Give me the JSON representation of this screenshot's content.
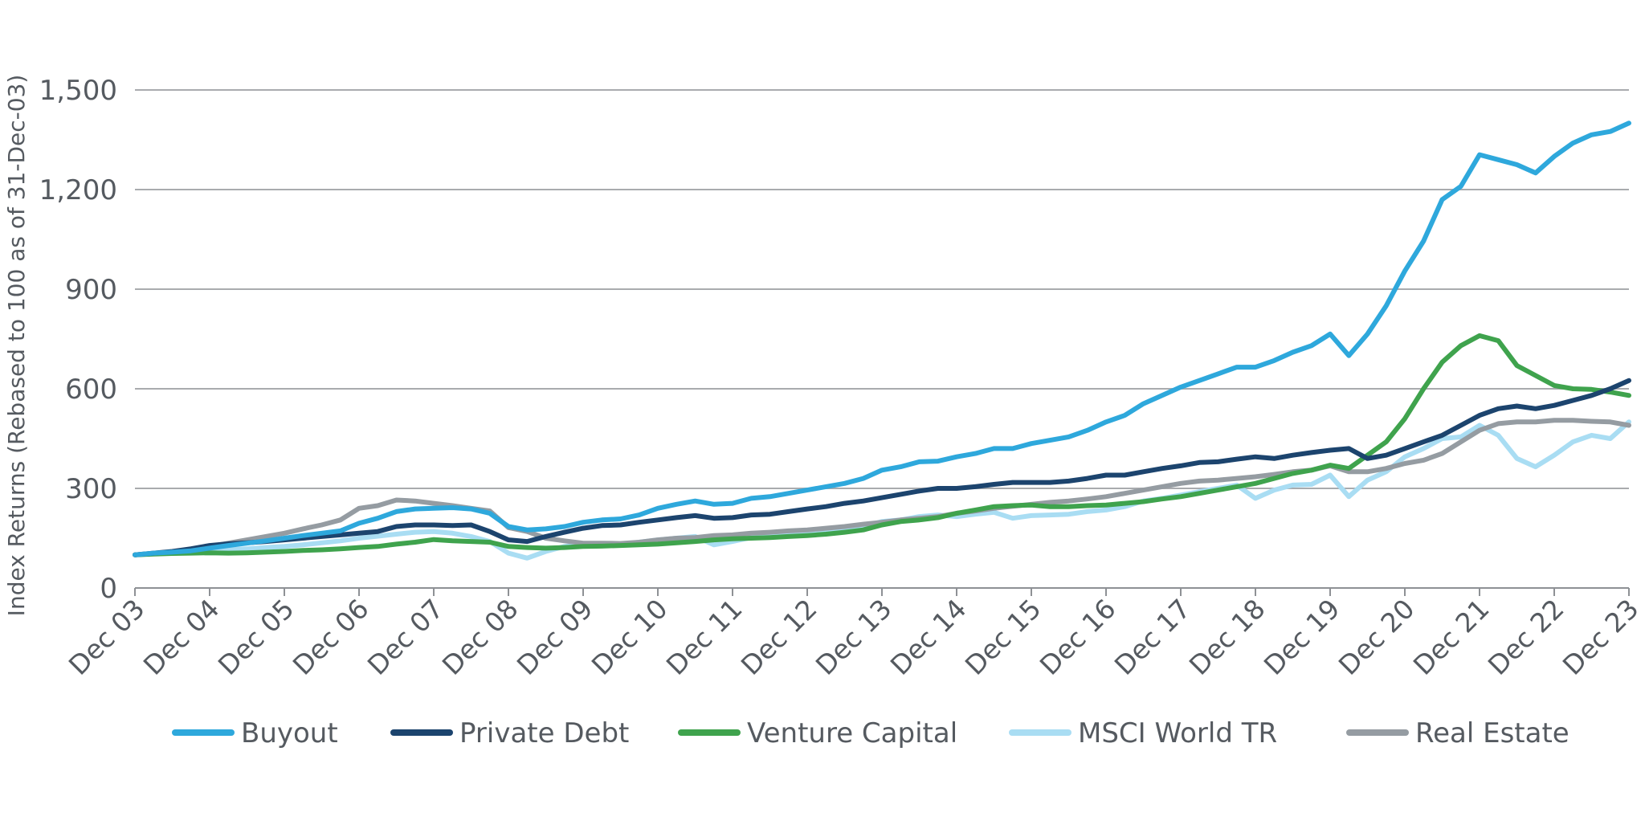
{
  "chart_data": {
    "type": "line",
    "ylabel": "Index Returns (Rebased to 100 as of 31-Dec-03)",
    "xlabel": "",
    "ylim": [
      0,
      1500
    ],
    "yticks": [
      0,
      300,
      600,
      900,
      1200,
      1500
    ],
    "ytick_labels": [
      "0",
      "300",
      "600",
      "900",
      "1,200",
      "1,500"
    ],
    "x_tick_labels": [
      "Dec 03",
      "Dec 04",
      "Dec 05",
      "Dec 06",
      "Dec 07",
      "Dec 08",
      "Dec 09",
      "Dec 10",
      "Dec 11",
      "Dec 12",
      "Dec 13",
      "Dec 14",
      "Dec 15",
      "Dec 16",
      "Dec 17",
      "Dec 18",
      "Dec 19",
      "Dec 20",
      "Dec 21",
      "Dec 22",
      "Dec 23"
    ],
    "xlim": [
      2003.0,
      2023.0
    ],
    "grid": true,
    "legend_position": "bottom",
    "series": [
      {
        "name": "Buyout",
        "color": "#2ea8dc",
        "width": 6,
        "x": [
          2003,
          2003.25,
          2003.5,
          2003.75,
          2004,
          2004.25,
          2004.5,
          2004.75,
          2005,
          2005.25,
          2005.5,
          2005.75,
          2006,
          2006.25,
          2006.5,
          2006.75,
          2007,
          2007.25,
          2007.5,
          2007.75,
          2008,
          2008.25,
          2008.5,
          2008.75,
          2009,
          2009.25,
          2009.5,
          2009.75,
          2010,
          2010.25,
          2010.5,
          2010.75,
          2011,
          2011.25,
          2011.5,
          2011.75,
          2012,
          2012.25,
          2012.5,
          2012.75,
          2013,
          2013.25,
          2013.5,
          2013.75,
          2014,
          2014.25,
          2014.5,
          2014.75,
          2015,
          2015.25,
          2015.5,
          2015.75,
          2016,
          2016.25,
          2016.5,
          2016.75,
          2017,
          2017.25,
          2017.5,
          2017.75,
          2018,
          2018.25,
          2018.5,
          2018.75,
          2019,
          2019.25,
          2019.5,
          2019.75,
          2020,
          2020.25,
          2020.5,
          2020.75,
          2021,
          2021.25,
          2021.5,
          2021.75,
          2022,
          2022.25,
          2022.5,
          2022.75,
          2023
        ],
        "y": [
          100,
          105,
          108,
          112,
          120,
          128,
          135,
          142,
          150,
          158,
          165,
          172,
          195,
          210,
          230,
          238,
          240,
          242,
          238,
          225,
          185,
          175,
          178,
          185,
          198,
          205,
          208,
          220,
          240,
          252,
          262,
          252,
          255,
          270,
          275,
          285,
          295,
          305,
          315,
          330,
          355,
          365,
          380,
          382,
          395,
          405,
          420,
          420,
          435,
          445,
          455,
          475,
          500,
          520,
          555,
          580,
          605,
          625,
          645,
          665,
          665,
          685,
          710,
          730,
          765,
          700,
          765,
          850,
          955,
          1045,
          1170,
          1210,
          1305,
          1290,
          1275,
          1250,
          1300,
          1340,
          1365,
          1375,
          1400
        ]
      },
      {
        "name": "Private Debt",
        "color": "#1c446e",
        "width": 6,
        "x": [
          2003,
          2003.25,
          2003.5,
          2003.75,
          2004,
          2004.25,
          2004.5,
          2004.75,
          2005,
          2005.25,
          2005.5,
          2005.75,
          2006,
          2006.25,
          2006.5,
          2006.75,
          2007,
          2007.25,
          2007.5,
          2007.75,
          2008,
          2008.25,
          2008.5,
          2008.75,
          2009,
          2009.25,
          2009.5,
          2009.75,
          2010,
          2010.25,
          2010.5,
          2010.75,
          2011,
          2011.25,
          2011.5,
          2011.75,
          2012,
          2012.25,
          2012.5,
          2012.75,
          2013,
          2013.25,
          2013.5,
          2013.75,
          2014,
          2014.25,
          2014.5,
          2014.75,
          2015,
          2015.25,
          2015.5,
          2015.75,
          2016,
          2016.25,
          2016.5,
          2016.75,
          2017,
          2017.25,
          2017.5,
          2017.75,
          2018,
          2018.25,
          2018.5,
          2018.75,
          2019,
          2019.25,
          2019.5,
          2019.75,
          2020,
          2020.25,
          2020.5,
          2020.75,
          2021,
          2021.25,
          2021.5,
          2021.75,
          2022,
          2022.25,
          2022.5,
          2022.75,
          2023
        ],
        "y": [
          100,
          105,
          110,
          118,
          128,
          133,
          136,
          140,
          145,
          150,
          155,
          160,
          165,
          170,
          185,
          190,
          190,
          188,
          190,
          170,
          145,
          140,
          155,
          168,
          180,
          188,
          190,
          198,
          205,
          212,
          218,
          210,
          212,
          220,
          222,
          230,
          238,
          245,
          255,
          262,
          272,
          282,
          292,
          300,
          300,
          305,
          312,
          318,
          318,
          318,
          322,
          330,
          340,
          340,
          350,
          360,
          368,
          378,
          380,
          388,
          395,
          390,
          400,
          408,
          415,
          420,
          390,
          400,
          420,
          440,
          460,
          490,
          520,
          540,
          548,
          540,
          550,
          565,
          580,
          600,
          625
        ]
      },
      {
        "name": "Venture Capital",
        "color": "#3fa34d",
        "width": 6,
        "x": [
          2003,
          2003.25,
          2003.5,
          2003.75,
          2004,
          2004.25,
          2004.5,
          2004.75,
          2005,
          2005.25,
          2005.5,
          2005.75,
          2006,
          2006.25,
          2006.5,
          2006.75,
          2007,
          2007.25,
          2007.5,
          2007.75,
          2008,
          2008.25,
          2008.5,
          2008.75,
          2009,
          2009.25,
          2009.5,
          2009.75,
          2010,
          2010.25,
          2010.5,
          2010.75,
          2011,
          2011.25,
          2011.5,
          2011.75,
          2012,
          2012.25,
          2012.5,
          2012.75,
          2013,
          2013.25,
          2013.5,
          2013.75,
          2014,
          2014.25,
          2014.5,
          2014.75,
          2015,
          2015.25,
          2015.5,
          2015.75,
          2016,
          2016.25,
          2016.5,
          2016.75,
          2017,
          2017.25,
          2017.5,
          2017.75,
          2018,
          2018.25,
          2018.5,
          2018.75,
          2019,
          2019.25,
          2019.5,
          2019.75,
          2020,
          2020.25,
          2020.5,
          2020.75,
          2021,
          2021.25,
          2021.5,
          2021.75,
          2022,
          2022.25,
          2022.5,
          2022.75,
          2023
        ],
        "y": [
          100,
          102,
          104,
          105,
          106,
          105,
          106,
          108,
          110,
          113,
          115,
          118,
          122,
          125,
          132,
          138,
          146,
          142,
          140,
          138,
          125,
          122,
          120,
          122,
          125,
          126,
          128,
          130,
          132,
          136,
          140,
          145,
          148,
          150,
          152,
          155,
          158,
          162,
          168,
          175,
          190,
          200,
          205,
          212,
          225,
          235,
          245,
          248,
          250,
          245,
          245,
          248,
          250,
          255,
          260,
          268,
          275,
          285,
          295,
          305,
          315,
          330,
          345,
          355,
          370,
          360,
          400,
          440,
          510,
          600,
          680,
          730,
          760,
          745,
          670,
          640,
          610,
          600,
          598,
          590,
          580
        ]
      },
      {
        "name": "MSCI World TR",
        "color": "#a9ddf3",
        "width": 6,
        "x": [
          2003,
          2003.25,
          2003.5,
          2003.75,
          2004,
          2004.25,
          2004.5,
          2004.75,
          2005,
          2005.25,
          2005.5,
          2005.75,
          2006,
          2006.25,
          2006.5,
          2006.75,
          2007,
          2007.25,
          2007.5,
          2007.75,
          2008,
          2008.25,
          2008.5,
          2008.75,
          2009,
          2009.25,
          2009.5,
          2009.75,
          2010,
          2010.25,
          2010.5,
          2010.75,
          2011,
          2011.25,
          2011.5,
          2011.75,
          2012,
          2012.25,
          2012.5,
          2012.75,
          2013,
          2013.25,
          2013.5,
          2013.75,
          2014,
          2014.25,
          2014.5,
          2014.75,
          2015,
          2015.25,
          2015.5,
          2015.75,
          2016,
          2016.25,
          2016.5,
          2016.75,
          2017,
          2017.25,
          2017.5,
          2017.75,
          2018,
          2018.25,
          2018.5,
          2018.75,
          2019,
          2019.25,
          2019.5,
          2019.75,
          2020,
          2020.25,
          2020.5,
          2020.75,
          2021,
          2021.25,
          2021.5,
          2021.75,
          2022,
          2022.25,
          2022.5,
          2022.75,
          2023
        ],
        "y": [
          100,
          103,
          106,
          110,
          112,
          115,
          118,
          122,
          125,
          130,
          136,
          142,
          150,
          156,
          162,
          168,
          170,
          165,
          155,
          140,
          105,
          90,
          110,
          125,
          132,
          128,
          130,
          138,
          145,
          150,
          155,
          130,
          140,
          152,
          155,
          160,
          162,
          168,
          175,
          185,
          200,
          205,
          215,
          220,
          215,
          222,
          228,
          210,
          218,
          220,
          222,
          230,
          235,
          245,
          262,
          270,
          280,
          290,
          300,
          310,
          270,
          295,
          310,
          312,
          340,
          275,
          325,
          350,
          395,
          420,
          450,
          455,
          490,
          460,
          390,
          365,
          400,
          440,
          460,
          450,
          500
        ]
      },
      {
        "name": "Real Estate",
        "color": "#959ca2",
        "width": 6,
        "x": [
          2003,
          2003.25,
          2003.5,
          2003.75,
          2004,
          2004.25,
          2004.5,
          2004.75,
          2005,
          2005.25,
          2005.5,
          2005.75,
          2006,
          2006.25,
          2006.5,
          2006.75,
          2007,
          2007.25,
          2007.5,
          2007.75,
          2008,
          2008.25,
          2008.5,
          2008.75,
          2009,
          2009.25,
          2009.5,
          2009.75,
          2010,
          2010.25,
          2010.5,
          2010.75,
          2011,
          2011.25,
          2011.5,
          2011.75,
          2012,
          2012.25,
          2012.5,
          2012.75,
          2013,
          2013.25,
          2013.5,
          2013.75,
          2014,
          2014.25,
          2014.5,
          2014.75,
          2015,
          2015.25,
          2015.5,
          2015.75,
          2016,
          2016.25,
          2016.5,
          2016.75,
          2017,
          2017.25,
          2017.5,
          2017.75,
          2018,
          2018.25,
          2018.5,
          2018.75,
          2019,
          2019.25,
          2019.5,
          2019.75,
          2020,
          2020.25,
          2020.5,
          2020.75,
          2021,
          2021.25,
          2021.5,
          2021.75,
          2022,
          2022.25,
          2022.5,
          2022.75,
          2023
        ],
        "y": [
          100,
          104,
          108,
          115,
          125,
          135,
          145,
          155,
          165,
          178,
          190,
          205,
          240,
          248,
          265,
          262,
          255,
          248,
          240,
          232,
          182,
          170,
          150,
          142,
          135,
          135,
          134,
          138,
          145,
          150,
          152,
          158,
          160,
          165,
          168,
          172,
          175,
          180,
          185,
          192,
          198,
          205,
          210,
          215,
          225,
          232,
          240,
          246,
          252,
          258,
          262,
          268,
          275,
          285,
          295,
          305,
          315,
          322,
          325,
          330,
          335,
          342,
          350,
          355,
          368,
          350,
          350,
          360,
          375,
          385,
          405,
          440,
          475,
          495,
          500,
          500,
          505,
          505,
          502,
          500,
          490
        ]
      }
    ]
  }
}
